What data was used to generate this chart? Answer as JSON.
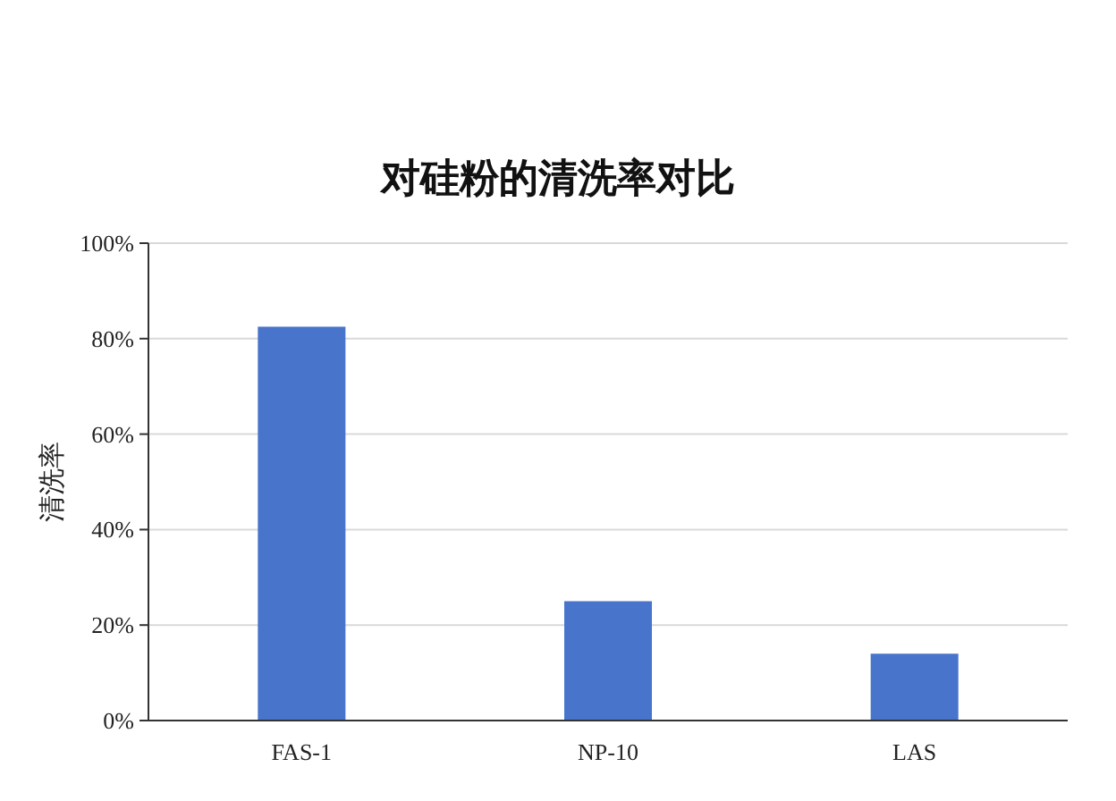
{
  "chart_data": {
    "type": "bar",
    "title": "对硅粉的清洗率对比",
    "ylabel": "清洗率",
    "categories": [
      "FAS-1",
      "NP-10",
      "LAS"
    ],
    "values": [
      82.5,
      25,
      14
    ],
    "color": "#4874cb",
    "ylim": [
      0,
      100
    ],
    "yticks": [
      {
        "value": 0,
        "label": "0%"
      },
      {
        "value": 20,
        "label": "20%"
      },
      {
        "value": 40,
        "label": "40%"
      },
      {
        "value": 60,
        "label": "60%"
      },
      {
        "value": 80,
        "label": "80%"
      },
      {
        "value": 100,
        "label": "100%"
      }
    ],
    "grid": "y"
  }
}
